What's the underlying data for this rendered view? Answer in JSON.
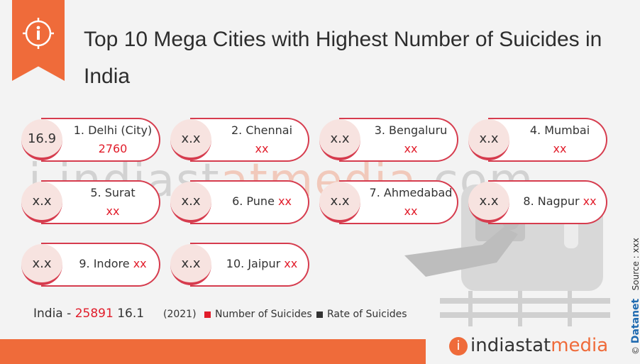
{
  "title": "Top 10 Mega Cities with Highest Number of Suicides in India",
  "cities": [
    {
      "rate": "16.9",
      "name": "1. Delhi (City)",
      "value": "2760"
    },
    {
      "rate": "x.x",
      "name": "2. Chennai",
      "value": "xx"
    },
    {
      "rate": "x.x",
      "name": "3. Bengaluru",
      "value": "xx"
    },
    {
      "rate": "x.x",
      "name": "4. Mumbai",
      "value": "xx"
    },
    {
      "rate": "x.x",
      "name": "5. Surat",
      "value": "xx"
    },
    {
      "rate": "x.x",
      "name": "6. Pune",
      "value": "xx"
    },
    {
      "rate": "x.x",
      "name": "7. Ahmedabad",
      "value": "xx"
    },
    {
      "rate": "x.x",
      "name": "8. Nagpur",
      "value": "xx"
    },
    {
      "rate": "x.x",
      "name": "9. Indore",
      "value": "xx"
    },
    {
      "rate": "x.x",
      "name": "10. Jaipur",
      "value": "xx"
    }
  ],
  "india": {
    "label": "India",
    "dash": "-",
    "number": "25891",
    "rate": "16.1",
    "year": "(2021)"
  },
  "legend": {
    "number_label": "Number of Suicides",
    "number_color": "#e11c2a",
    "rate_label": "Rate of Suicides",
    "rate_color": "#333333"
  },
  "watermark": {
    "left": "i indiast",
    "mid": "atmedia",
    "right": ".com"
  },
  "brand": {
    "logo": "i",
    "part1": "indiastat",
    "part2": "media"
  },
  "side": {
    "copyright": "© ",
    "datanet": "Datanet",
    "source": "Source : xxx"
  },
  "colors": {
    "accent": "#ef6b3a",
    "red": "#e11c2a",
    "border": "#d63c4e"
  }
}
